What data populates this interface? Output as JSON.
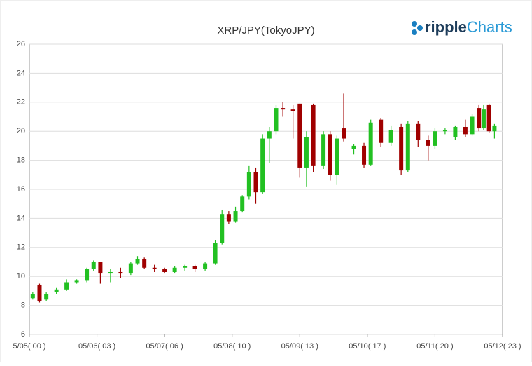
{
  "chart_data": {
    "type": "candlestick",
    "title": "XRP/JPY(TokyoJPY)",
    "logo": {
      "brand": "ripple",
      "product": "Charts"
    },
    "xlim": [
      0,
      7
    ],
    "xticks": [
      {
        "value": 0,
        "label": "5/05( 00 )"
      },
      {
        "value": 1,
        "label": "05/06( 03 )"
      },
      {
        "value": 2,
        "label": "05/07( 06 )"
      },
      {
        "value": 3,
        "label": "05/08( 10 )"
      },
      {
        "value": 4,
        "label": "05/09( 13 )"
      },
      {
        "value": 5,
        "label": "05/10( 17 )"
      },
      {
        "value": 6,
        "label": "05/11( 20 )"
      },
      {
        "value": 7,
        "label": "05/12( 23 )"
      }
    ],
    "ylim": [
      6,
      26
    ],
    "yticks": [
      6,
      8,
      10,
      12,
      14,
      16,
      18,
      20,
      22,
      24,
      26
    ],
    "grid": true,
    "up_color": "#22c022",
    "down_color": "#a00000",
    "x": [
      0.05,
      0.15,
      0.25,
      0.4,
      0.55,
      0.7,
      0.85,
      0.95,
      1.05,
      1.2,
      1.35,
      1.5,
      1.6,
      1.7,
      1.85,
      2.0,
      2.15,
      2.3,
      2.45,
      2.6,
      2.75,
      2.85,
      2.95,
      3.05,
      3.15,
      3.25,
      3.35,
      3.45,
      3.55,
      3.65,
      3.75,
      3.9,
      4.0,
      4.1,
      4.2,
      4.35,
      4.45,
      4.55,
      4.65,
      4.8,
      4.95,
      5.05,
      5.2,
      5.35,
      5.5,
      5.6,
      5.75,
      5.9,
      6.0,
      6.15,
      6.3,
      6.45,
      6.55,
      6.65,
      6.72,
      6.8,
      6.88
    ],
    "open": [
      8.5,
      9.4,
      8.4,
      8.9,
      9.1,
      9.6,
      9.7,
      10.5,
      11.0,
      10.2,
      10.3,
      10.2,
      10.9,
      11.2,
      10.6,
      10.5,
      10.3,
      10.6,
      10.7,
      10.5,
      10.9,
      12.3,
      14.3,
      13.8,
      14.5,
      15.5,
      17.2,
      15.8,
      19.5,
      20.0,
      21.6,
      21.5,
      21.9,
      17.5,
      21.8,
      17.6,
      19.8,
      17.0,
      20.2,
      18.8,
      19.0,
      17.7,
      20.8,
      19.2,
      20.3,
      17.3,
      20.5,
      19.4,
      19.0,
      20.0,
      19.6,
      20.3,
      19.8,
      21.6,
      20.2,
      21.8,
      20.0
    ],
    "high": [
      8.9,
      9.5,
      8.9,
      9.2,
      9.8,
      9.8,
      10.6,
      11.1,
      11.0,
      10.5,
      10.6,
      11.0,
      11.4,
      11.3,
      10.8,
      10.6,
      10.7,
      10.8,
      10.8,
      11.0,
      12.5,
      14.6,
      14.5,
      14.8,
      15.6,
      17.6,
      17.5,
      19.8,
      20.3,
      21.8,
      22.0,
      21.8,
      21.9,
      20.0,
      21.9,
      20.0,
      20.0,
      19.7,
      22.6,
      19.1,
      19.2,
      20.8,
      20.9,
      20.4,
      20.5,
      20.7,
      20.7,
      19.7,
      20.2,
      20.2,
      20.4,
      20.8,
      21.2,
      21.8,
      21.8,
      21.9,
      20.5
    ],
    "low": [
      8.4,
      8.2,
      8.3,
      8.8,
      9.0,
      9.5,
      9.6,
      10.4,
      9.5,
      9.6,
      9.9,
      10.1,
      10.8,
      10.5,
      10.3,
      10.2,
      10.2,
      10.4,
      10.3,
      10.4,
      10.8,
      12.2,
      13.6,
      13.7,
      14.4,
      15.3,
      15.0,
      15.7,
      17.8,
      19.8,
      21.0,
      19.5,
      16.8,
      16.2,
      17.2,
      17.4,
      16.6,
      16.3,
      19.3,
      18.4,
      17.5,
      17.6,
      18.9,
      19.0,
      17.0,
      17.2,
      18.9,
      18.0,
      18.8,
      19.8,
      19.4,
      19.6,
      19.7,
      20.0,
      20.1,
      19.9,
      19.5
    ],
    "close": [
      8.8,
      8.3,
      8.8,
      9.1,
      9.6,
      9.7,
      10.5,
      11.0,
      10.2,
      10.3,
      10.2,
      10.9,
      11.2,
      10.6,
      10.5,
      10.3,
      10.6,
      10.7,
      10.5,
      10.9,
      12.3,
      14.3,
      13.8,
      14.5,
      15.5,
      17.2,
      15.8,
      19.5,
      20.0,
      21.6,
      21.5,
      21.4,
      17.5,
      19.6,
      17.6,
      19.8,
      17.0,
      19.5,
      19.5,
      19.0,
      17.7,
      20.6,
      19.2,
      20.1,
      17.3,
      20.5,
      19.4,
      19.0,
      20.0,
      20.1,
      20.3,
      19.8,
      21.0,
      20.2,
      21.5,
      20.0,
      20.4
    ]
  }
}
